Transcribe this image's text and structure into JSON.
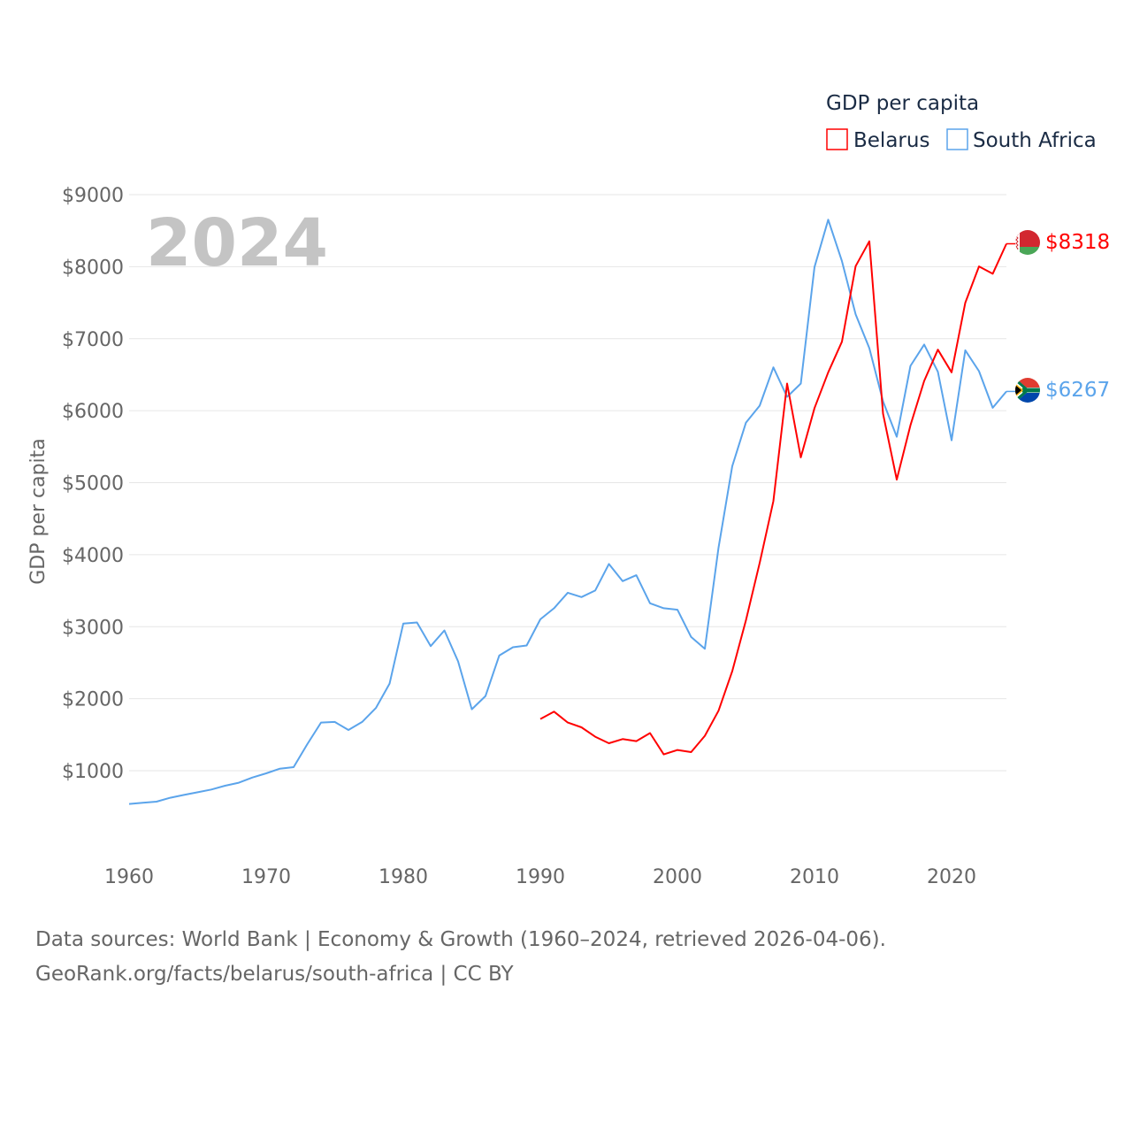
{
  "chart_data": {
    "type": "line",
    "title": "GDP per capita",
    "year_label": "2024",
    "xlabel": "",
    "ylabel": "GDP per capita",
    "xlim": [
      1960,
      2024
    ],
    "ylim": [
      0,
      9000
    ],
    "grid": true,
    "legend_position": "top-right",
    "x_ticks": [
      "1960",
      "1970",
      "1980",
      "1990",
      "2000",
      "2010",
      "2020"
    ],
    "x_tick_values": [
      1960,
      1970,
      1980,
      1990,
      2000,
      2010,
      2020
    ],
    "y_ticks": [
      "$1000",
      "$2000",
      "$3000",
      "$4000",
      "$5000",
      "$6000",
      "$7000",
      "$8000",
      "$9000"
    ],
    "y_tick_values": [
      1000,
      2000,
      3000,
      4000,
      5000,
      6000,
      7000,
      8000,
      9000
    ],
    "series": [
      {
        "name": "Belarus",
        "color": "#ff0000",
        "end_label": "$8318",
        "start_year": 1990,
        "values": [
          1718,
          1820,
          1669,
          1603,
          1472,
          1381,
          1439,
          1411,
          1522,
          1226,
          1288,
          1258,
          1485,
          1833,
          2383,
          3090,
          3885,
          4745,
          6376,
          5351,
          6036,
          6532,
          6958,
          8007,
          8352,
          5958,
          5043,
          5798,
          6413,
          6847,
          6532,
          7499,
          8004,
          7902,
          8318
        ]
      },
      {
        "name": "South Africa",
        "color": "#5ba4eb",
        "end_label": "$6267",
        "start_year": 1960,
        "values": [
          538,
          555,
          570,
          624,
          664,
          701,
          738,
          791,
          833,
          906,
          963,
          1029,
          1049,
          1369,
          1669,
          1677,
          1566,
          1677,
          1870,
          2210,
          3042,
          3059,
          2731,
          2948,
          2518,
          1853,
          2038,
          2599,
          2715,
          2739,
          3103,
          3256,
          3472,
          3411,
          3502,
          3871,
          3632,
          3715,
          3325,
          3256,
          3235,
          2857,
          2694,
          4100,
          5230,
          5835,
          6069,
          6601,
          6192,
          6376,
          7995,
          8652,
          8077,
          7339,
          6868,
          6130,
          5638,
          6622,
          6918,
          6540,
          5589,
          6839,
          6549,
          6040,
          6267
        ]
      }
    ]
  },
  "footer": {
    "line1": "Data sources: World Bank | Economy & Growth (1960–2024, retrieved 2026-04-06).",
    "line2": "GeoRank.org/facts/belarus/south-africa | CC BY"
  }
}
